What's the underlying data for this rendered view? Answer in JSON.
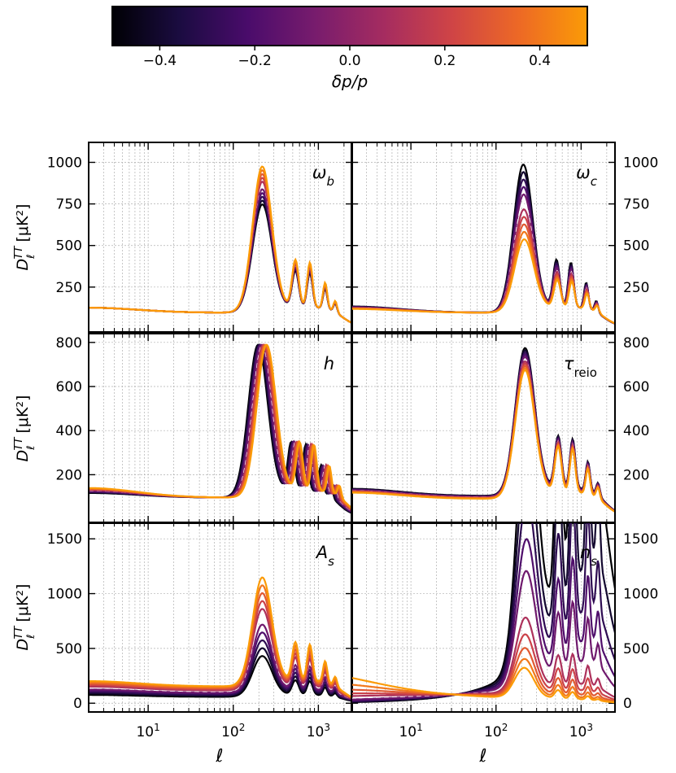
{
  "colorbar": {
    "label": "δp/p",
    "range": [
      -0.5,
      0.5
    ],
    "ticks": [
      "−0.4",
      "−0.2",
      "0.0",
      "0.2",
      "0.4"
    ],
    "tick_values": [
      -0.4,
      -0.2,
      0.0,
      0.2,
      0.4
    ],
    "colormap": "inferno",
    "stops": [
      "#000004",
      "#1b0c41",
      "#4a0c6b",
      "#781c6d",
      "#a52c60",
      "#cf4446",
      "#ed6925",
      "#fb9b06"
    ]
  },
  "shared_axes": {
    "xlabel": "ℓ",
    "ylabel_main": "D",
    "ylabel_sub": "ℓ",
    "ylabel_sup": "TT",
    "ylabel_unit": "[μK²]",
    "x_scale": "log",
    "xlim": [
      2,
      2500
    ],
    "x_ticks": [
      {
        "base": "10",
        "exp": "1",
        "value": 10
      },
      {
        "base": "10",
        "exp": "2",
        "value": 100
      },
      {
        "base": "10",
        "exp": "3",
        "value": 1000
      }
    ],
    "grid": true
  },
  "chart_data": [
    {
      "type": "line",
      "param_main": "ω",
      "param_sub": "b",
      "ylim": [
        -20,
        1120
      ],
      "yticks": [
        250,
        500,
        750,
        1000
      ],
      "y_side": "left",
      "show_xlabels": false,
      "n_curves": 11,
      "variant": "omega_b"
    },
    {
      "type": "line",
      "param_main": "ω",
      "param_sub": "c",
      "ylim": [
        -20,
        1120
      ],
      "yticks": [
        250,
        500,
        750,
        1000
      ],
      "y_side": "right",
      "show_xlabels": false,
      "n_curves": 11,
      "variant": "omega_c"
    },
    {
      "type": "line",
      "param_main": "h",
      "param_sub": "",
      "ylim": [
        -20,
        840
      ],
      "yticks": [
        200,
        400,
        600,
        800
      ],
      "y_side": "left",
      "show_xlabels": false,
      "n_curves": 11,
      "variant": "h"
    },
    {
      "type": "line",
      "param_main": "τ",
      "param_sub": "reio",
      "ylim": [
        -20,
        840
      ],
      "yticks": [
        200,
        400,
        600,
        800
      ],
      "y_side": "right",
      "show_xlabels": false,
      "n_curves": 11,
      "variant": "tau"
    },
    {
      "type": "line",
      "param_main": "A",
      "param_sub": "s",
      "ylim": [
        -80,
        1650
      ],
      "yticks": [
        0,
        500,
        1000,
        1500
      ],
      "y_side": "left",
      "show_xlabels": true,
      "n_curves": 11,
      "variant": "A_s"
    },
    {
      "type": "line",
      "param_main": "n",
      "param_sub": "s",
      "ylim": [
        -80,
        1650
      ],
      "yticks": [
        0,
        500,
        1000,
        1500
      ],
      "y_side": "right",
      "show_xlabels": true,
      "n_curves": 11,
      "variant": "n_s"
    }
  ]
}
